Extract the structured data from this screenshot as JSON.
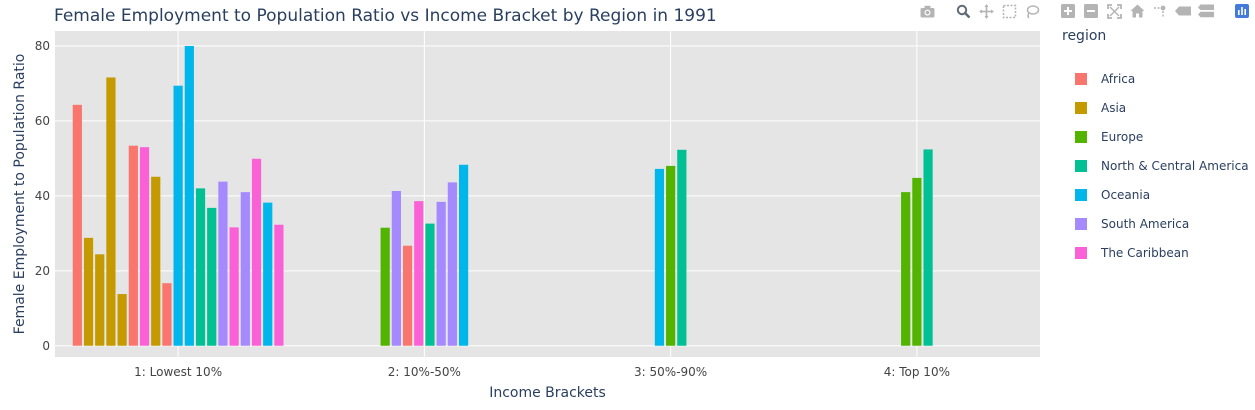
{
  "chart_data": {
    "type": "bar",
    "title": "Female Employment to Population Ratio vs Income Bracket by Region in 1991",
    "xlabel": "Income Brackets",
    "ylabel": "Female Employment to Population Ratio",
    "categories": [
      "1: Lowest 10%",
      "2: 10%-50%",
      "3: 50%-90%",
      "4: Top 10%"
    ],
    "ylim": [
      -3,
      84
    ],
    "yticks": [
      0,
      20,
      40,
      60,
      80
    ],
    "grid": true,
    "legend_title": "region",
    "legend_position": "right",
    "plot_bgcolor": "#E5ECF6",
    "series": [
      {
        "name": "Africa",
        "color": "#F8766D"
      },
      {
        "name": "Asia",
        "color": "#C49A00"
      },
      {
        "name": "Europe",
        "color": "#53B400"
      },
      {
        "name": "North & Central America",
        "color": "#00C094"
      },
      {
        "name": "Oceania",
        "color": "#00B6EB"
      },
      {
        "name": "South America",
        "color": "#A58AFF"
      },
      {
        "name": "The Caribbean",
        "color": "#FB61D7"
      }
    ],
    "bars": [
      {
        "category": 0,
        "series": 0,
        "value": 64.3
      },
      {
        "category": 0,
        "series": 1,
        "value": 28.8
      },
      {
        "category": 0,
        "series": 1,
        "value": 24.4
      },
      {
        "category": 0,
        "series": 1,
        "value": 71.6
      },
      {
        "category": 0,
        "series": 1,
        "value": 13.8
      },
      {
        "category": 0,
        "series": 0,
        "value": 53.4
      },
      {
        "category": 0,
        "series": 6,
        "value": 53.0
      },
      {
        "category": 0,
        "series": 1,
        "value": 45.1
      },
      {
        "category": 0,
        "series": 0,
        "value": 16.7
      },
      {
        "category": 0,
        "series": 4,
        "value": 69.4
      },
      {
        "category": 0,
        "series": 4,
        "value": 80.0
      },
      {
        "category": 0,
        "series": 3,
        "value": 42.0
      },
      {
        "category": 0,
        "series": 3,
        "value": 36.8
      },
      {
        "category": 0,
        "series": 5,
        "value": 43.8
      },
      {
        "category": 0,
        "series": 6,
        "value": 31.6
      },
      {
        "category": 0,
        "series": 5,
        "value": 41.0
      },
      {
        "category": 0,
        "series": 6,
        "value": 49.9
      },
      {
        "category": 0,
        "series": 4,
        "value": 38.2
      },
      {
        "category": 0,
        "series": 6,
        "value": 32.3
      },
      {
        "category": 1,
        "series": 2,
        "value": 31.5
      },
      {
        "category": 1,
        "series": 5,
        "value": 41.3
      },
      {
        "category": 1,
        "series": 0,
        "value": 26.7
      },
      {
        "category": 1,
        "series": 6,
        "value": 38.6
      },
      {
        "category": 1,
        "series": 3,
        "value": 32.6
      },
      {
        "category": 1,
        "series": 5,
        "value": 38.4
      },
      {
        "category": 1,
        "series": 5,
        "value": 43.6
      },
      {
        "category": 1,
        "series": 4,
        "value": 48.3
      },
      {
        "category": 2,
        "series": 4,
        "value": 47.2
      },
      {
        "category": 2,
        "series": 2,
        "value": 48.0
      },
      {
        "category": 2,
        "series": 3,
        "value": 52.3
      },
      {
        "category": 3,
        "series": 2,
        "value": 41.0
      },
      {
        "category": 3,
        "series": 2,
        "value": 44.8
      },
      {
        "category": 3,
        "series": 3,
        "value": 52.4
      }
    ]
  },
  "modebar": {
    "icons": [
      "camera-icon",
      "zoom-icon",
      "pan-icon",
      "box-select-icon",
      "lasso-select-icon",
      "zoom-in-icon",
      "zoom-out-icon",
      "autoscale-icon",
      "reset-axes-icon",
      "spike-lines-icon",
      "hover-closest-icon",
      "hover-compare-icon",
      "plotly-logo-icon"
    ]
  }
}
